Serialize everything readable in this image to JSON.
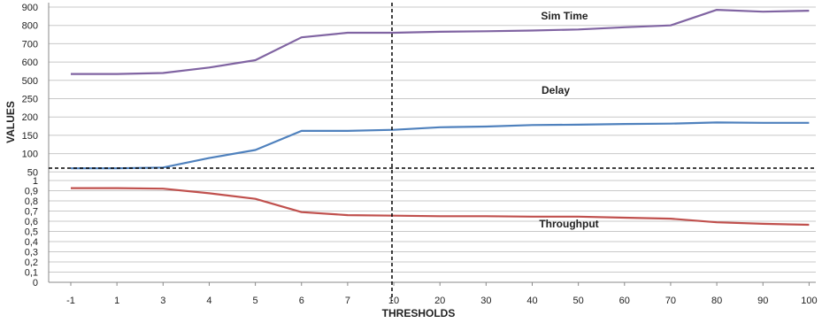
{
  "chart_data": {
    "type": "line",
    "xlabel": "THRESHOLDS",
    "ylabel": "VALUES",
    "categories": [
      "-1",
      "1",
      "3",
      "4",
      "5",
      "6",
      "7",
      "10",
      "20",
      "30",
      "40",
      "50",
      "60",
      "70",
      "80",
      "90",
      "100"
    ],
    "grid": true,
    "panels": [
      {
        "name": "upper",
        "y_ticks": [
          "900",
          "800",
          "700",
          "600",
          "500",
          "250",
          "200",
          "150",
          "100",
          "50"
        ],
        "series": [
          {
            "name": "Sim Time",
            "color": "#8064a2",
            "values": [
              535,
              535,
              540,
              570,
              610,
              735,
              760,
              760,
              765,
              768,
              772,
              778,
              790,
              800,
              885,
              875,
              880
            ]
          },
          {
            "name": "Delay",
            "color": "#4f81bd",
            "values": [
              60,
              60,
              62,
              88,
              110,
              162,
              162,
              165,
              172,
              174,
              178,
              179,
              181,
              182,
              185,
              184,
              184
            ]
          }
        ]
      },
      {
        "name": "lower",
        "y_ticks": [
          "1",
          "0,9",
          "0,8",
          "0,7",
          "0,6",
          "0,5",
          "0,4",
          "0,3",
          "0,2",
          "0,1",
          "0"
        ],
        "ylim": [
          0,
          1
        ],
        "series": [
          {
            "name": "Throughput",
            "color": "#c0504d",
            "values": [
              0.925,
              0.925,
              0.92,
              0.875,
              0.82,
              0.69,
              0.66,
              0.655,
              0.65,
              0.65,
              0.645,
              0.645,
              0.635,
              0.625,
              0.59,
              0.575,
              0.565
            ]
          }
        ]
      }
    ]
  }
}
